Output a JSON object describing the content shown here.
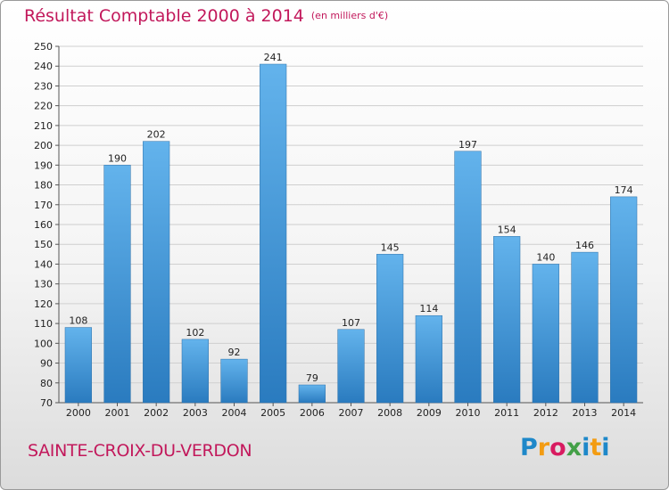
{
  "chart_data": {
    "type": "bar",
    "title": "Résultat Comptable 2000 à 2014",
    "subtitle": "(en milliers d'€)",
    "categories": [
      "2000",
      "2001",
      "2002",
      "2003",
      "2004",
      "2005",
      "2006",
      "2007",
      "2008",
      "2009",
      "2010",
      "2011",
      "2012",
      "2013",
      "2014"
    ],
    "values": [
      108,
      190,
      202,
      102,
      92,
      241,
      79,
      107,
      145,
      114,
      197,
      154,
      140,
      146,
      174
    ],
    "ylim": [
      70,
      250
    ],
    "ytick_step": 10,
    "xlabel": "",
    "ylabel": "",
    "grid": true,
    "bar_color_top": "#63b3ec",
    "bar_color_bottom": "#2a7bbf"
  },
  "footer": {
    "commune": "SAINTE-CROIX-DU-VERDON",
    "logo_text": "Proxiti",
    "logo_colors": [
      "#1e88c9",
      "#f39c12",
      "#d81b60",
      "#43a047",
      "#1e88c9",
      "#f39c12",
      "#1e88c9"
    ]
  },
  "colors": {
    "accent": "#c2185b",
    "grid": "#cfcfcf"
  }
}
